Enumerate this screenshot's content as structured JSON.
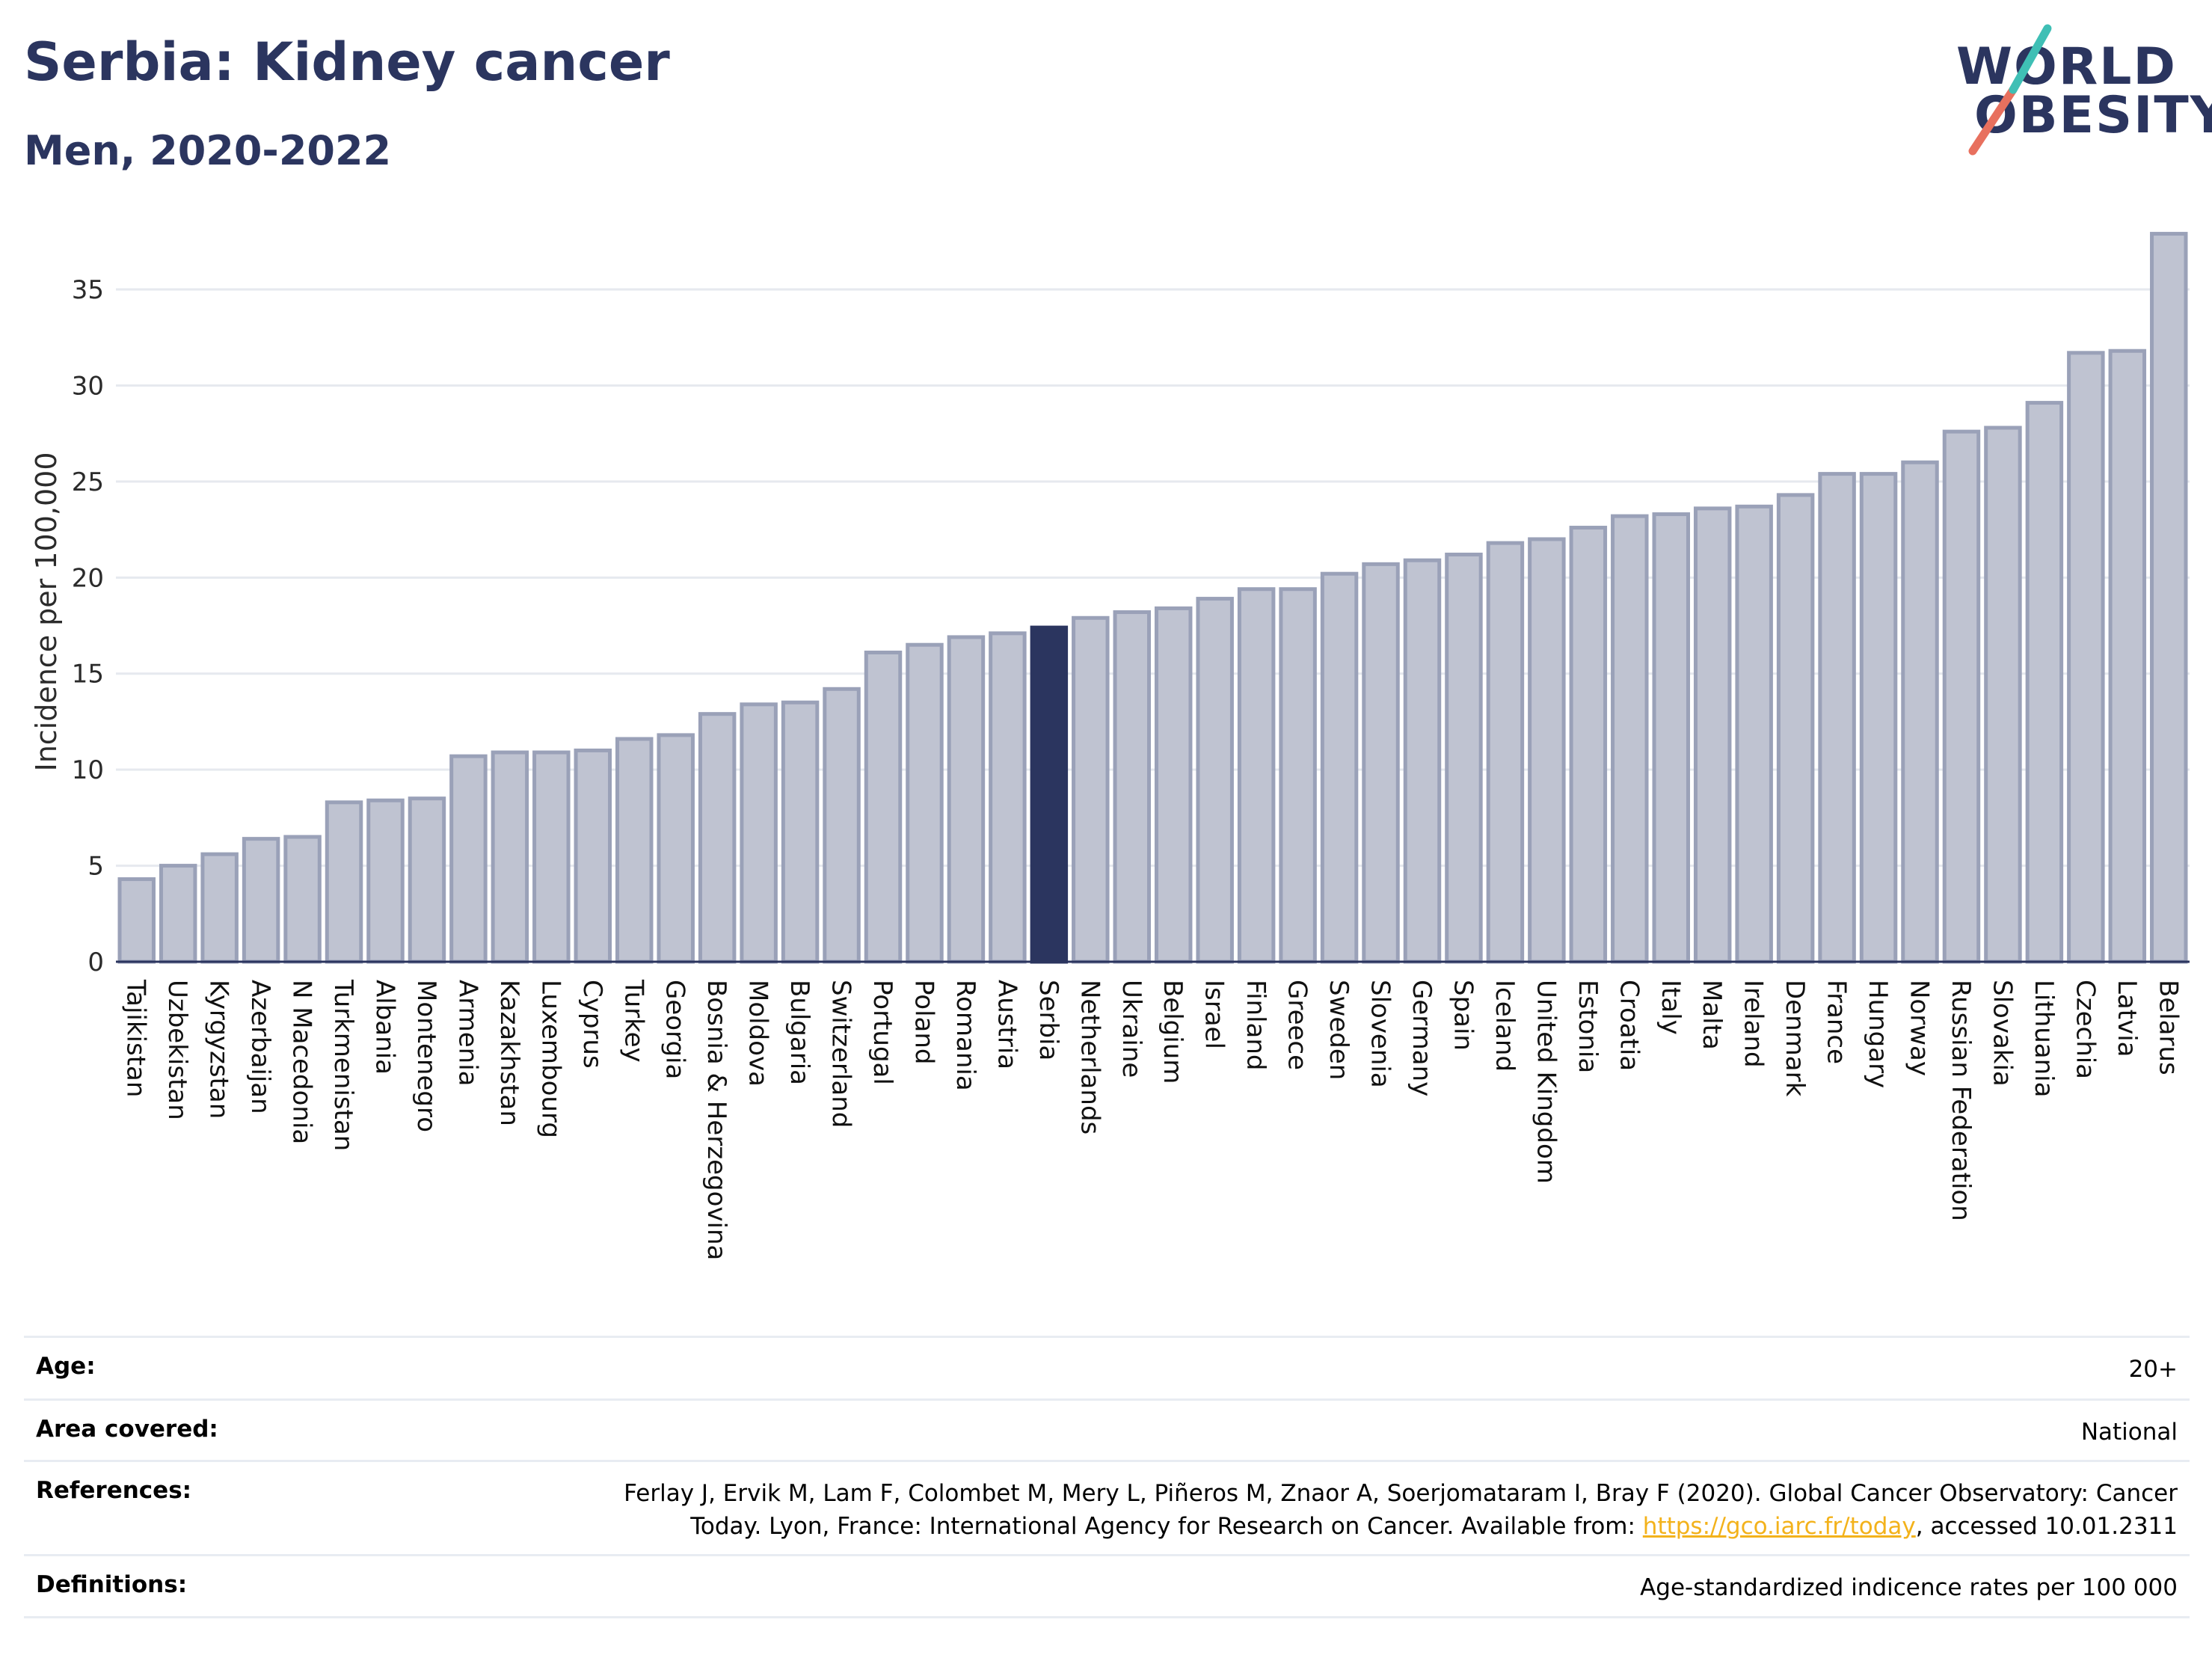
{
  "header": {
    "title": "Serbia: Kidney cancer",
    "subtitle": "Men, 2020-2022"
  },
  "logo": {
    "line1": "WORLD",
    "line2": "OBESITY"
  },
  "colors": {
    "bar": "#bfc3d1",
    "bar_border": "#9aa1b8",
    "highlight": "#2b355f",
    "grid": "#e6e9ef",
    "axis": "#2b355f"
  },
  "chart_data": {
    "type": "bar",
    "ylabel": "Incidence per 100,000",
    "ylim": [
      0,
      38
    ],
    "yticks": [
      0,
      5,
      10,
      15,
      20,
      25,
      30,
      35
    ],
    "grid": true,
    "highlight": "Serbia",
    "categories": [
      "Tajikistan",
      "Uzbekistan",
      "Kyrgyzstan",
      "Azerbaijan",
      "N Macedonia",
      "Turkmenistan",
      "Albania",
      "Montenegro",
      "Armenia",
      "Kazakhstan",
      "Luxembourg",
      "Cyprus",
      "Turkey",
      "Georgia",
      "Bosnia & Herzegovina",
      "Moldova",
      "Bulgaria",
      "Switzerland",
      "Portugal",
      "Poland",
      "Romania",
      "Austria",
      "Serbia",
      "Netherlands",
      "Ukraine",
      "Belgium",
      "Israel",
      "Finland",
      "Greece",
      "Sweden",
      "Slovenia",
      "Germany",
      "Spain",
      "Iceland",
      "United Kingdom",
      "Estonia",
      "Croatia",
      "Italy",
      "Malta",
      "Ireland",
      "Denmark",
      "France",
      "Hungary",
      "Norway",
      "Russian Federation",
      "Slovakia",
      "Lithuania",
      "Czechia",
      "Latvia",
      "Belarus"
    ],
    "values": [
      4.3,
      5.0,
      5.6,
      6.4,
      6.5,
      8.3,
      8.4,
      8.5,
      10.7,
      10.9,
      10.9,
      11.0,
      11.6,
      11.8,
      12.9,
      13.4,
      13.5,
      14.2,
      16.1,
      16.5,
      16.9,
      17.1,
      17.4,
      17.9,
      18.2,
      18.4,
      18.9,
      19.4,
      19.4,
      20.2,
      20.7,
      20.9,
      21.2,
      21.8,
      22.0,
      22.6,
      23.2,
      23.3,
      23.6,
      23.7,
      24.3,
      25.4,
      25.4,
      26.0,
      27.6,
      27.8,
      29.1,
      31.7,
      31.8,
      37.9
    ]
  },
  "footer": {
    "age_label": "Age:",
    "age_value": "20+",
    "area_label": "Area covered:",
    "area_value": "National",
    "references_label": "References:",
    "references_text_1": "Ferlay J, Ervik M, Lam F, Colombet M, Mery L, Piñeros M, Znaor A, Soerjomataram I, Bray F (2020). Global Cancer Observatory: Cancer",
    "references_text_2": "Today. Lyon, France: International Agency for Research on Cancer. Available from: ",
    "references_link": "https://gco.iarc.fr/today",
    "references_text_3": ", accessed 10.01.2311",
    "definitions_label": "Definitions:",
    "definitions_value": "Age-standardized indicence rates per 100 000"
  }
}
